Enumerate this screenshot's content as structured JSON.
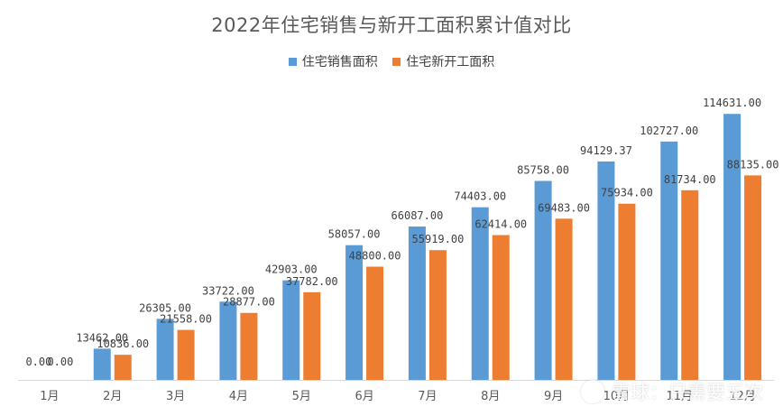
{
  "colors": {
    "series_0": "#5B9BD5",
    "series_1": "#ED7D31",
    "axis": "#D9D9D9"
  },
  "watermark": {
    "text": "雪球：只需要五次",
    "icon": "snowball-logo-icon"
  },
  "chart_data": {
    "type": "bar",
    "title": "2022年住宅销售与新开工面积累计值对比",
    "xlabel": "",
    "ylabel": "",
    "categories": [
      "1月",
      "2月",
      "3月",
      "4月",
      "5月",
      "6月",
      "7月",
      "8月",
      "9月",
      "10月",
      "11月",
      "12月"
    ],
    "series": [
      {
        "name": "住宅销售面积",
        "values": [
          0.0,
          13462.0,
          26305.0,
          33722.0,
          42903.0,
          58057.0,
          66087.0,
          74403.0,
          85758.0,
          94129.37,
          102727.0,
          114631.0
        ],
        "labels": [
          "0.00",
          "13462.00",
          "26305.00",
          "33722.00",
          "42903.00",
          "58057.00",
          "66087.00",
          "74403.00",
          "85758.00",
          "94129.37",
          "102727.00",
          "114631.00"
        ]
      },
      {
        "name": "住宅新开工面积",
        "values": [
          0.0,
          10836.0,
          21558.0,
          28877.0,
          37782.0,
          48800.0,
          55919.0,
          62414.0,
          69483.0,
          75934.0,
          81734.0,
          88135.0
        ],
        "labels": [
          "0.00",
          "10836.00",
          "21558.00",
          "28877.00",
          "37782.00",
          "48800.00",
          "55919.00",
          "62414.00",
          "69483.00",
          "75934.00",
          "81734.00",
          "88135.00"
        ]
      }
    ],
    "ylim": [
      0,
      140000
    ],
    "grid": false,
    "legend_position": "top-center"
  }
}
